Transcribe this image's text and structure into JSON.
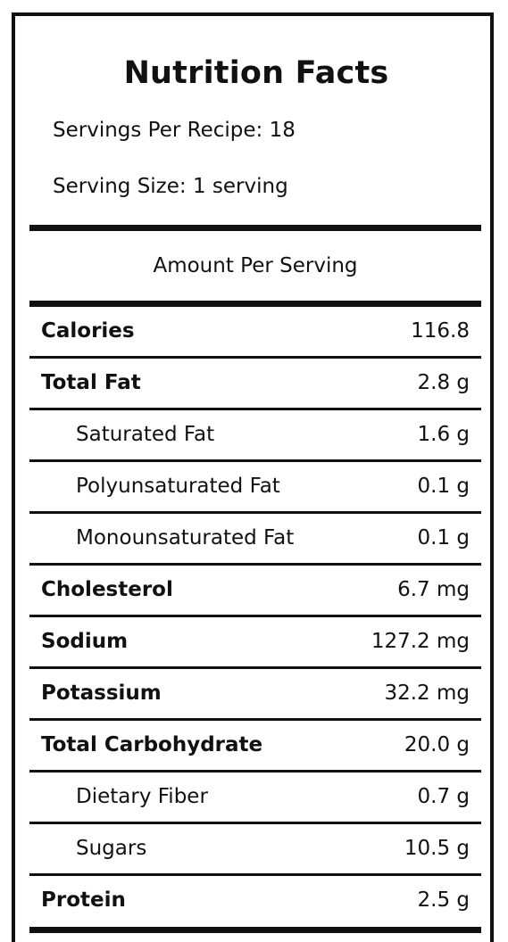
{
  "label": {
    "title": "Nutrition Facts",
    "servings_per_recipe": "Servings Per Recipe: 18",
    "serving_size": "Serving Size: 1 serving",
    "amount_per_serving": "Amount Per Serving",
    "nutrients": [
      {
        "name": "Calories",
        "value": "116.8",
        "bold": true
      },
      {
        "name": "Total Fat",
        "value": "2.8 g",
        "bold": true
      },
      {
        "name": "Saturated Fat",
        "value": "1.6 g",
        "bold": false
      },
      {
        "name": "Polyunsaturated Fat",
        "value": "0.1 g",
        "bold": false
      },
      {
        "name": "Monounsaturated Fat",
        "value": "0.1 g",
        "bold": false
      },
      {
        "name": "Cholesterol",
        "value": "6.7 mg",
        "bold": true
      },
      {
        "name": "Sodium",
        "value": "127.2 mg",
        "bold": true
      },
      {
        "name": "Potassium",
        "value": "32.2 mg",
        "bold": true
      },
      {
        "name": "Total Carbohydrate",
        "value": "20.0 g",
        "bold": true
      },
      {
        "name": "Dietary Fiber",
        "value": "0.7 g",
        "bold": false
      },
      {
        "name": "Sugars",
        "value": "10.5 g",
        "bold": false
      },
      {
        "name": "Protein",
        "value": "2.5 g",
        "bold": true
      }
    ]
  }
}
